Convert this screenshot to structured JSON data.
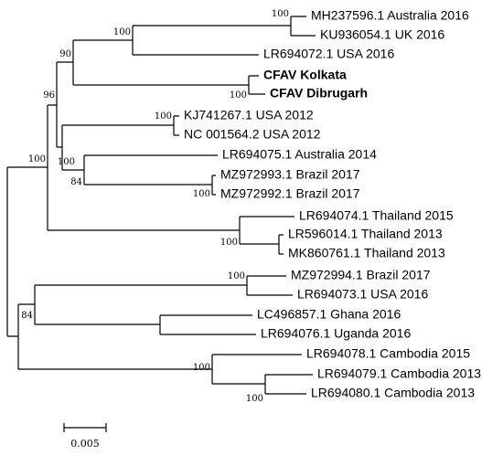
{
  "leaves": [
    "MH237596.1 Australia 2016",
    "KU936054.1 UK 2016",
    "LR694072.1 USA 2016",
    "CFAV Kolkata",
    "CFAV Dibrugarh",
    "KJ741267.1 USA 2012",
    "NC 001564.2 USA 2012",
    "LR694075.1 Australia 2014",
    "MZ972993.1 Brazil 2017",
    "MZ972992.1 Brazil 2017",
    "LR694074.1 Thailand 2015",
    "LR596014.1 Thailand 2013",
    "MK860761.1 Thailand 2013",
    "MZ972994.1 Brazil 2017",
    "LR694073.1 USA 2016",
    "LC496857.1 Ghana 2016",
    "LR694076.1 Uganda 2016",
    "LR694078.1 Cambodia 2015",
    "LR694079.1 Cambodia 2013",
    "LR694080.1 Cambodia 2013"
  ],
  "bootstrap": [
    100,
    100,
    100,
    90,
    96,
    100,
    84,
    100,
    100,
    100,
    100,
    100,
    84,
    100,
    100
  ],
  "scale_bar": {
    "label": "0.005"
  }
}
